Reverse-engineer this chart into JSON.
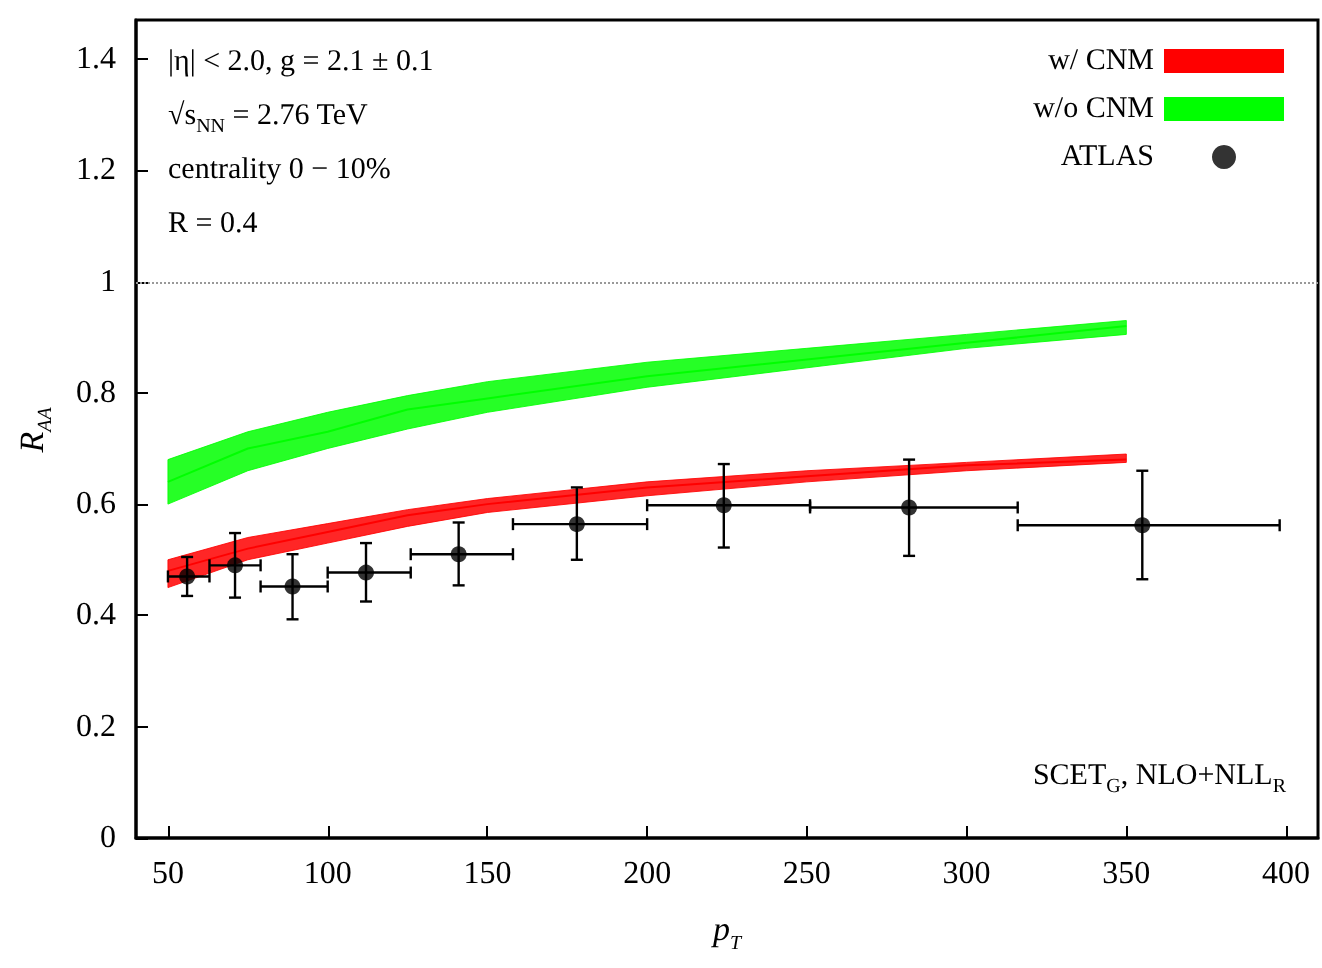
{
  "chart_data": {
    "type": "line",
    "xlabel": "p$_{T}$",
    "ylabel": "R$_{AA}$",
    "xlim": [
      40,
      410
    ],
    "xticks": [
      50,
      100,
      150,
      200,
      250,
      300,
      350,
      400
    ],
    "ylim": [
      0,
      1.47
    ],
    "yticks": [
      0,
      0.2,
      0.4,
      0.6,
      0.8,
      1,
      1.2,
      1.4
    ],
    "grid": false,
    "legend": "top right",
    "series": [
      {
        "name": "w/ CNM",
        "color": "#ff0000",
        "x": [
          50,
          75,
          100,
          125,
          150,
          200,
          250,
          300,
          350
        ],
        "values": [
          0.48,
          0.52,
          0.55,
          0.58,
          0.6,
          0.63,
          0.65,
          0.67,
          0.68
        ],
        "lower": [
          0.45,
          0.5,
          0.53,
          0.56,
          0.585,
          0.615,
          0.64,
          0.66,
          0.675
        ],
        "upper": [
          0.5,
          0.54,
          0.565,
          0.59,
          0.61,
          0.64,
          0.66,
          0.675,
          0.69
        ]
      },
      {
        "name": "w/o CNM",
        "color": "#00ff00",
        "x": [
          50,
          75,
          100,
          125,
          150,
          200,
          250,
          300,
          350
        ],
        "values": [
          0.64,
          0.7,
          0.73,
          0.77,
          0.79,
          0.83,
          0.86,
          0.89,
          0.92
        ],
        "lower": [
          0.6,
          0.66,
          0.7,
          0.735,
          0.765,
          0.81,
          0.845,
          0.88,
          0.905
        ],
        "upper": [
          0.68,
          0.73,
          0.765,
          0.795,
          0.82,
          0.855,
          0.88,
          0.905,
          0.93
        ]
      },
      {
        "name": "ATLAS",
        "type": "scatter",
        "color": "#000000",
        "marker": "circle",
        "x": [
          56,
          71,
          89,
          112,
          141,
          178,
          224,
          282,
          355
        ],
        "values": [
          0.47,
          0.49,
          0.452,
          0.477,
          0.51,
          0.564,
          0.598,
          0.594,
          0.562
        ],
        "errors": [
          [
            0.435,
            0.505
          ],
          [
            0.432,
            0.548
          ],
          [
            0.393,
            0.51
          ],
          [
            0.425,
            0.53
          ],
          [
            0.454,
            0.567
          ],
          [
            0.5,
            0.63
          ],
          [
            0.522,
            0.672
          ],
          [
            0.507,
            0.68
          ],
          [
            0.465,
            0.66
          ]
        ],
        "xerrors": [
          [
            50,
            63
          ],
          [
            63,
            79
          ],
          [
            79,
            100
          ],
          [
            100,
            126
          ],
          [
            126,
            158
          ],
          [
            158,
            200
          ],
          [
            200,
            251
          ],
          [
            251,
            316
          ],
          [
            316,
            398
          ]
        ]
      }
    ],
    "ref_lines": [
      {
        "axis": "y",
        "value": 1,
        "color": "#999999",
        "line_style": "dotted"
      }
    ],
    "annotations": [
      "|η| < 2.0, g = 2.1 ± 0.1",
      "√s$_{NN}$ = 2.76 TeV",
      "centrality 0 − 10%",
      "R = 0.4",
      "SCET$_{G}$, NLO+NLL$_{R}$"
    ]
  }
}
